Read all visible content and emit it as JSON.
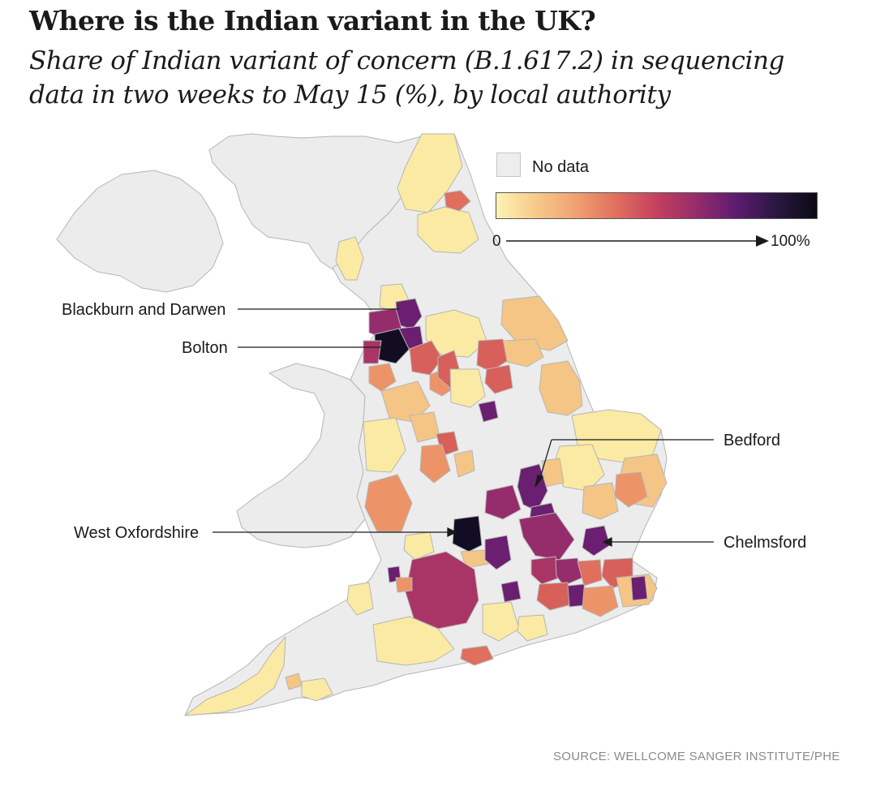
{
  "header": {
    "title": "Where is the Indian variant in the UK?",
    "subtitle": "Share of Indian variant of concern (B.1.617.2) in sequencing data in two weeks to May 15 (%), by local authority"
  },
  "legend": {
    "no_data_label": "No data",
    "scale_min": "0",
    "scale_max": "100%",
    "colors": [
      "#fcf3b4",
      "#f7c98a",
      "#f0a071",
      "#e06f5e",
      "#c4405f",
      "#952c6c",
      "#5c1c70",
      "#2a1740",
      "#0a0a14"
    ]
  },
  "annotations": [
    {
      "id": "blackburn",
      "label": "Blackburn and Darwen"
    },
    {
      "id": "bolton",
      "label": "Bolton"
    },
    {
      "id": "bedford",
      "label": "Bedford"
    },
    {
      "id": "west_oxfordshire",
      "label": "West Oxfordshire"
    },
    {
      "id": "chelmsford",
      "label": "Chelmsford"
    }
  ],
  "map_colors": {
    "no_data": "#ececec",
    "border": "#b5b5b5",
    "low": "#fbeaa3",
    "low_mid": "#f5c586",
    "mid": "#ec9468",
    "mid_high": "#d7605b",
    "high": "#a93566",
    "very_high": "#6b1f70",
    "extreme": "#120d22"
  },
  "source": "SOURCE: WELLCOME SANGER INSTITUTE/PHE"
}
